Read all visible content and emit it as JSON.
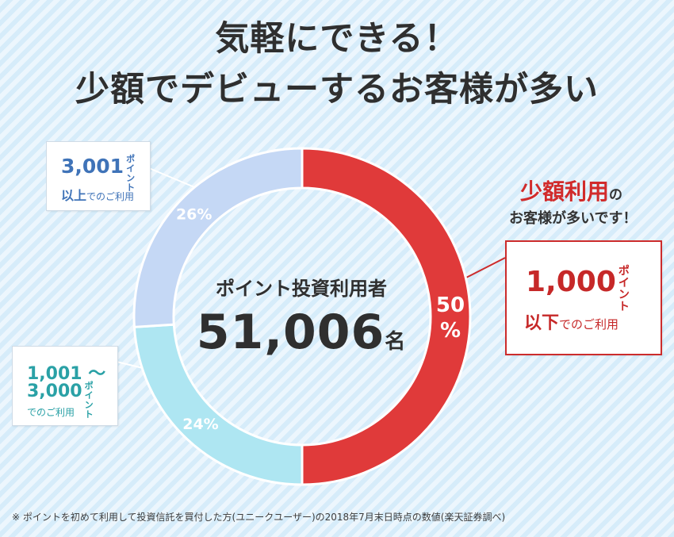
{
  "title": {
    "line1": "気軽にできる！",
    "line2": "少額でデビューするお客様が多い"
  },
  "center": {
    "label": "ポイント投資利用者",
    "count": "51,006",
    "unit": "名"
  },
  "chart_data": {
    "type": "pie",
    "title": "ポイント投資利用者",
    "slices": [
      {
        "label": "1,000ポイント以下でのご利用",
        "value": 50,
        "value_label": "50%",
        "color": "#e03a3a"
      },
      {
        "label": "1,001〜3,000ポイントでのご利用",
        "value": 24,
        "value_label": "24%",
        "color": "#aee6f2"
      },
      {
        "label": "3,001ポイント以上でのご利用",
        "value": 26,
        "value_label": "26%",
        "color": "#c5d8f5"
      }
    ],
    "donut": true
  },
  "cards": {
    "top": {
      "num": "3,001",
      "kata": "ポイント",
      "big2": "以上",
      "rest": "でのご利用"
    },
    "mid": {
      "line1": "1,001 〜",
      "num": "3,000",
      "kata": "ポイント",
      "rest": "でのご利用"
    },
    "red": {
      "num": "1,000",
      "kata": "ポイント",
      "big2": "以下",
      "rest": "でのご利用"
    }
  },
  "callout": {
    "em": "少額利用",
    "tail": "の",
    "line2": "お客様が多いです！"
  },
  "footnote": "※ ポイントを初めて利用して投資信託を買付した方(ユニークユーザー)の2018年7月末日時点の数値(楽天証券調べ)"
}
